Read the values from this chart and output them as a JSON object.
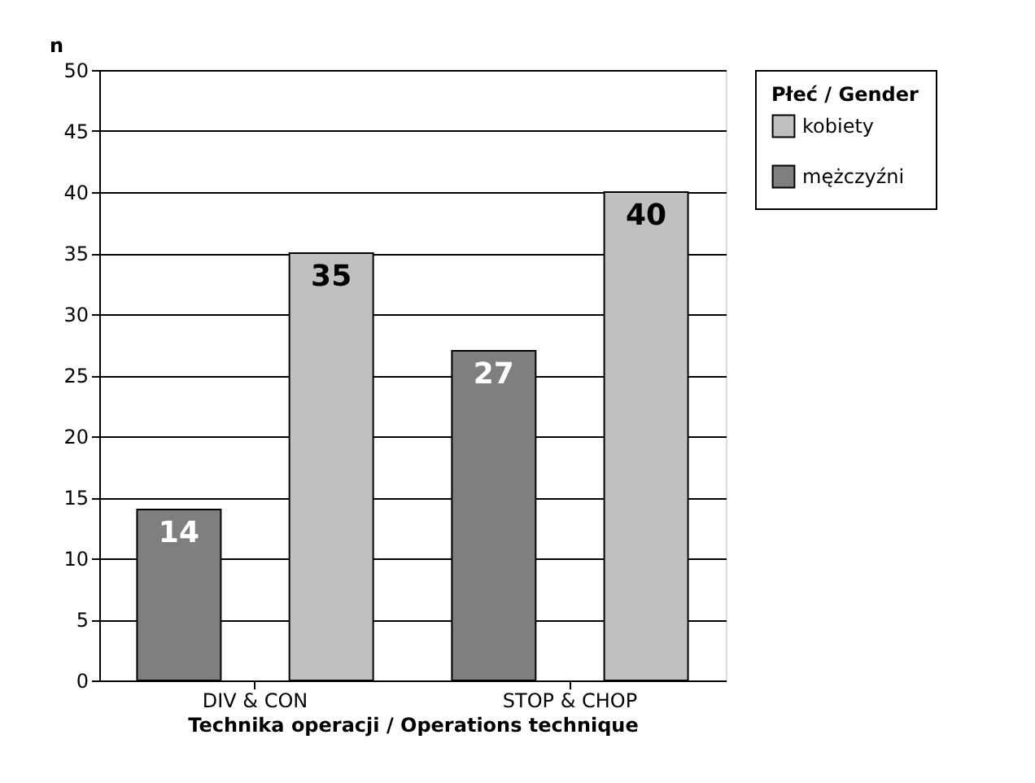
{
  "chart_data": {
    "type": "bar",
    "xlabel": "Technika operacji / Operations technique",
    "ylabel": "n",
    "legend_title": "Płeć / Gender",
    "categories": [
      "DIV & CON",
      "STOP & CHOP"
    ],
    "series": [
      {
        "name": "mężczyźni",
        "color": "#7f7f7f",
        "values": [
          14,
          27
        ]
      },
      {
        "name": "kobiety",
        "color": "#c0c0c0",
        "values": [
          35,
          40
        ]
      }
    ],
    "ylim": [
      0,
      50
    ],
    "yticks": [
      0,
      5,
      10,
      15,
      20,
      25,
      30,
      35,
      40,
      45,
      50
    ],
    "grid": "y",
    "legend": "right",
    "data_labels": true
  }
}
